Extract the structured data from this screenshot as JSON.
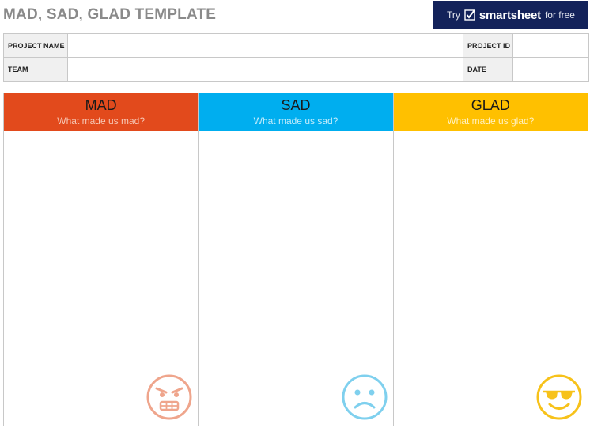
{
  "header": {
    "title": "MAD, SAD, GLAD TEMPLATE",
    "promo": {
      "try": "Try",
      "brand": "smartsheet",
      "free": "for free",
      "bg": "#13225a"
    }
  },
  "info": {
    "project_name_label": "PROJECT NAME",
    "project_id_label": "PROJECT ID",
    "team_label": "TEAM",
    "date_label": "DATE"
  },
  "columns": [
    {
      "title": "MAD",
      "subtitle": "What made us mad?",
      "color": "#e24a1c",
      "icon": "angry-face-icon"
    },
    {
      "title": "SAD",
      "subtitle": "What made us sad?",
      "color": "#00aeef",
      "icon": "sad-face-icon"
    },
    {
      "title": "GLAD",
      "subtitle": "What made us glad?",
      "color": "#ffc000",
      "icon": "sunglasses-face-icon"
    }
  ]
}
